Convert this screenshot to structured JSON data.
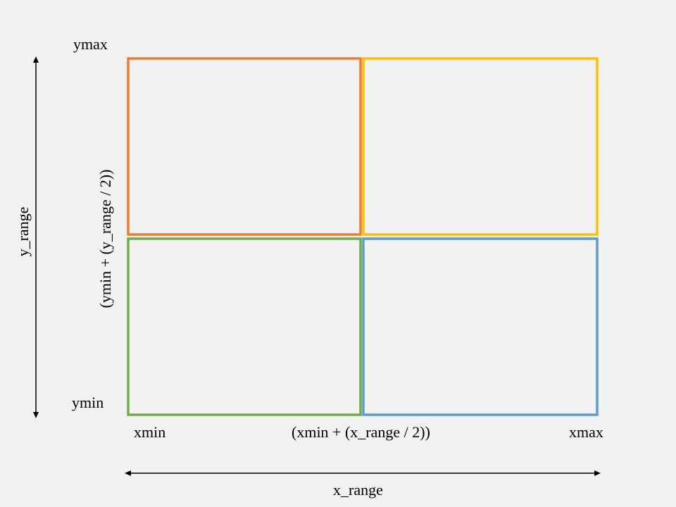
{
  "labels": {
    "ymax": "ymax",
    "ymin": "ymin",
    "xmin": "xmin",
    "xmid": "(xmin + (x_range / 2))",
    "xmax": "xmax",
    "ymid": "(ymin + (y_range / 2))",
    "y_range": "y_range",
    "x_range": "x_range"
  },
  "quadrants": {
    "top_left": {
      "color": "#ed7d31"
    },
    "top_right": {
      "color": "#ffc000"
    },
    "bottom_left": {
      "color": "#70ad47"
    },
    "bottom_right": {
      "color": "#5b9bd5"
    }
  },
  "arrow_color": "#000000"
}
